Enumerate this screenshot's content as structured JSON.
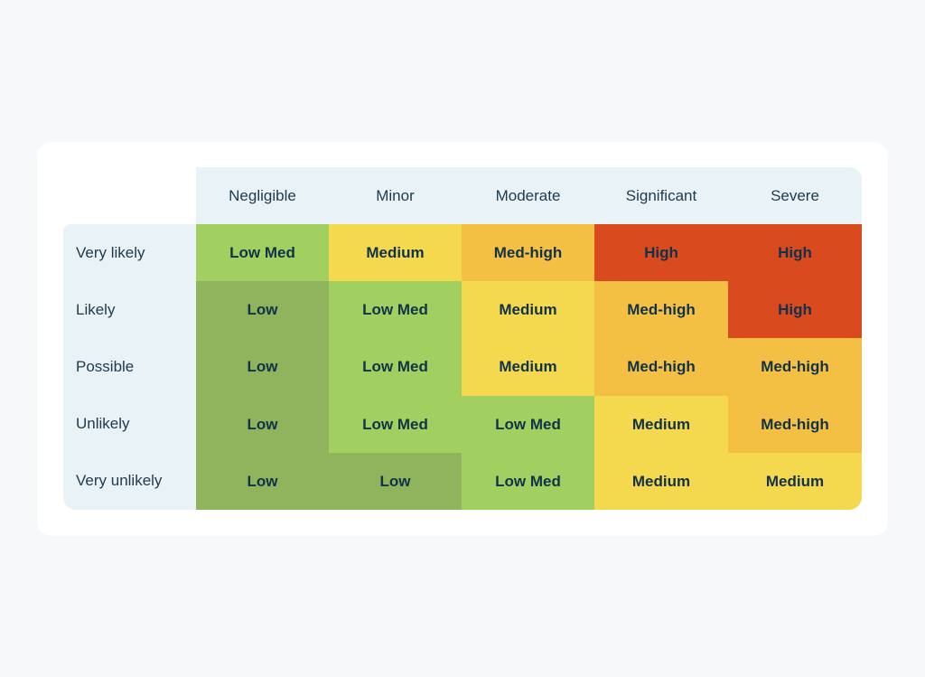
{
  "chart_data": {
    "type": "heatmap",
    "title": "",
    "columns": [
      "Negligible",
      "Minor",
      "Moderate",
      "Significant",
      "Severe"
    ],
    "rows": [
      "Very likely",
      "Likely",
      "Possible",
      "Unlikely",
      "Very unlikely"
    ],
    "cells": [
      [
        "Low Med",
        "Medium",
        "Med-high",
        "High",
        "High"
      ],
      [
        "Low",
        "Low Med",
        "Medium",
        "Med-high",
        "High"
      ],
      [
        "Low",
        "Low Med",
        "Medium",
        "Med-high",
        "Med-high"
      ],
      [
        "Low",
        "Low Med",
        "Low Med",
        "Medium",
        "Med-high"
      ],
      [
        "Low",
        "Low",
        "Low Med",
        "Medium",
        "Medium"
      ]
    ],
    "colors": {
      "Low": "#8fb45c",
      "Low Med": "#a2d060",
      "Medium": "#f4d84e",
      "Med-high": "#f4c044",
      "High": "#d94a1f"
    }
  }
}
